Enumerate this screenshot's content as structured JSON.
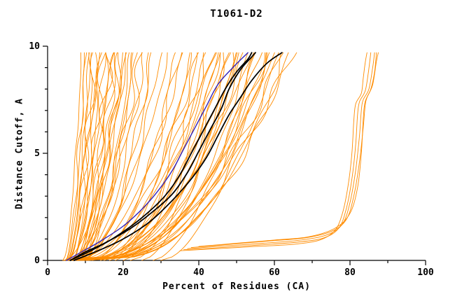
{
  "chart_data": {
    "type": "line",
    "title": "T1061-D2",
    "xlabel": "Percent of Residues (CA)",
    "ylabel": "Distance Cutoff, A",
    "xlim": [
      0,
      100
    ],
    "ylim": [
      0,
      10
    ],
    "xticks": [
      0,
      20,
      40,
      60,
      80,
      100
    ],
    "xminor_step": 10,
    "yticks": [
      0,
      5,
      10
    ],
    "yminor_step": 1,
    "y_top_data": 9.7,
    "legend": "none",
    "grid": false,
    "colors": {
      "models": "#ff8c00",
      "reference": "#000000",
      "highlight": "#3322bb"
    },
    "orange_fan_format": [
      "x_at_bottom",
      "x_at_top",
      "shape_exponent"
    ],
    "orange_fan": [
      [
        4.0,
        9,
        0.55
      ],
      [
        4.5,
        10,
        0.45
      ],
      [
        5.0,
        11,
        0.5
      ],
      [
        5.0,
        12,
        0.4
      ],
      [
        5.5,
        13,
        0.55
      ],
      [
        6.0,
        14,
        0.45
      ],
      [
        6.0,
        15,
        0.5
      ],
      [
        6.5,
        16,
        0.4
      ],
      [
        7.0,
        17,
        0.55
      ],
      [
        7.0,
        18,
        0.45
      ],
      [
        5.0,
        19,
        0.35
      ],
      [
        6.0,
        20,
        0.5
      ],
      [
        4.5,
        21,
        0.55
      ],
      [
        5.5,
        22,
        0.4
      ],
      [
        6.5,
        23,
        0.45
      ],
      [
        7.5,
        24,
        0.5
      ],
      [
        5.0,
        25,
        0.35
      ],
      [
        6.0,
        26,
        0.55
      ],
      [
        7.0,
        27,
        0.4
      ],
      [
        8.0,
        28,
        0.45
      ],
      [
        5,
        10,
        0.65
      ],
      [
        5.5,
        11.5,
        0.6
      ],
      [
        6,
        12.5,
        0.65
      ],
      [
        6.5,
        13.5,
        0.55
      ],
      [
        7,
        15,
        0.65
      ],
      [
        7.5,
        16.5,
        0.6
      ],
      [
        8,
        18,
        0.65
      ],
      [
        8.5,
        19.5,
        0.6
      ],
      [
        9,
        21,
        0.65
      ],
      [
        9.5,
        23,
        0.6
      ],
      [
        4,
        30,
        0.4
      ],
      [
        5,
        32,
        0.45
      ],
      [
        6,
        34,
        0.35
      ],
      [
        7,
        36,
        0.5
      ],
      [
        8,
        38,
        0.4
      ],
      [
        5,
        40,
        0.45
      ],
      [
        6,
        42,
        0.35
      ],
      [
        7,
        44,
        0.5
      ],
      [
        8,
        46,
        0.4
      ],
      [
        9,
        48,
        0.45
      ],
      [
        5,
        50,
        0.35
      ],
      [
        6,
        52,
        0.4
      ],
      [
        7,
        54,
        0.45
      ],
      [
        8,
        56,
        0.35
      ],
      [
        9,
        58,
        0.4
      ],
      [
        10,
        60,
        0.45
      ],
      [
        6,
        62,
        0.4
      ],
      [
        7,
        64,
        0.35
      ],
      [
        8,
        65,
        0.45
      ],
      [
        6,
        45,
        0.3
      ],
      [
        7,
        47,
        0.32
      ],
      [
        8,
        49,
        0.3
      ],
      [
        6.5,
        51,
        0.34
      ],
      [
        7.5,
        53,
        0.31
      ],
      [
        8.5,
        55,
        0.34
      ],
      [
        9,
        57,
        0.32
      ],
      [
        9.5,
        59,
        0.36
      ],
      [
        10,
        61,
        0.34
      ],
      [
        10.5,
        63,
        0.37
      ],
      [
        12,
        35,
        0.55
      ],
      [
        14,
        38,
        0.5
      ],
      [
        16,
        44,
        0.55
      ],
      [
        18,
        42,
        0.6
      ],
      [
        20,
        45,
        0.6
      ],
      [
        22,
        48,
        0.55
      ],
      [
        25,
        50,
        0.6
      ],
      [
        28,
        55,
        0.6
      ],
      [
        30,
        58,
        0.55
      ],
      [
        15,
        40,
        0.5
      ]
    ],
    "orange_right_cluster": [
      [
        [
          35,
          0.45
        ],
        [
          45,
          0.55
        ],
        [
          55,
          0.65
        ],
        [
          65,
          0.75
        ],
        [
          72,
          0.95
        ],
        [
          76,
          1.4
        ],
        [
          78,
          2.2
        ],
        [
          79.5,
          3.5
        ],
        [
          80.5,
          5.0
        ],
        [
          81,
          6.5
        ],
        [
          81.5,
          7.3
        ],
        [
          83,
          7.8
        ],
        [
          83.5,
          8.5
        ],
        [
          84,
          9.2
        ],
        [
          84.5,
          9.7
        ]
      ],
      [
        [
          36,
          0.5
        ],
        [
          46,
          0.6
        ],
        [
          56,
          0.72
        ],
        [
          66,
          0.85
        ],
        [
          73,
          1.05
        ],
        [
          77,
          1.5
        ],
        [
          79,
          2.4
        ],
        [
          80.5,
          3.8
        ],
        [
          81.5,
          5.4
        ],
        [
          82,
          6.8
        ],
        [
          82.5,
          7.4
        ],
        [
          84,
          7.9
        ],
        [
          84.8,
          8.7
        ],
        [
          85.5,
          9.7
        ]
      ],
      [
        [
          37,
          0.55
        ],
        [
          47,
          0.68
        ],
        [
          57,
          0.8
        ],
        [
          67,
          0.95
        ],
        [
          74,
          1.2
        ],
        [
          78,
          1.7
        ],
        [
          80,
          2.7
        ],
        [
          81.5,
          4.2
        ],
        [
          82.5,
          5.8
        ],
        [
          83,
          7.0
        ],
        [
          83.5,
          7.5
        ],
        [
          85,
          8.0
        ],
        [
          86,
          9.0
        ],
        [
          86.5,
          9.7
        ]
      ],
      [
        [
          38,
          0.6
        ],
        [
          48,
          0.75
        ],
        [
          58,
          0.9
        ],
        [
          68,
          1.05
        ],
        [
          75,
          1.35
        ],
        [
          79,
          1.9
        ],
        [
          81,
          3.0
        ],
        [
          82.5,
          4.6
        ],
        [
          83.5,
          6.2
        ],
        [
          84,
          7.2
        ],
        [
          84.5,
          7.6
        ],
        [
          86,
          8.2
        ],
        [
          87,
          9.3
        ],
        [
          87.5,
          9.7
        ]
      ],
      [
        [
          40,
          0.65
        ],
        [
          50,
          0.8
        ],
        [
          60,
          0.95
        ],
        [
          69,
          1.1
        ],
        [
          76,
          1.5
        ],
        [
          80,
          2.2
        ],
        [
          82,
          3.4
        ],
        [
          83,
          5.0
        ],
        [
          83.5,
          6.6
        ],
        [
          84,
          7.4
        ],
        [
          85.5,
          8.0
        ],
        [
          86.5,
          8.8
        ],
        [
          87,
          9.7
        ]
      ]
    ],
    "black_curves": [
      [
        [
          6,
          0
        ],
        [
          10,
          0.4
        ],
        [
          15,
          0.8
        ],
        [
          22,
          1.5
        ],
        [
          28,
          2.3
        ],
        [
          33,
          3.1
        ],
        [
          37,
          4.1
        ],
        [
          40,
          5.1
        ],
        [
          43,
          6.1
        ],
        [
          46,
          7.1
        ],
        [
          48,
          8.0
        ],
        [
          51,
          8.9
        ],
        [
          54,
          9.5
        ],
        [
          55,
          9.7
        ]
      ],
      [
        [
          7,
          0
        ],
        [
          14,
          0.5
        ],
        [
          20,
          1.0
        ],
        [
          27,
          1.8
        ],
        [
          33,
          2.8
        ],
        [
          38,
          3.8
        ],
        [
          42,
          4.8
        ],
        [
          45,
          5.8
        ],
        [
          48,
          6.8
        ],
        [
          51,
          7.6
        ],
        [
          54,
          8.4
        ],
        [
          58,
          9.2
        ],
        [
          62,
          9.7
        ]
      ],
      [
        [
          6,
          0
        ],
        [
          12,
          0.5
        ],
        [
          18,
          1.1
        ],
        [
          25,
          2.0
        ],
        [
          31,
          3.0
        ],
        [
          35,
          4.0
        ],
        [
          38,
          5.0
        ],
        [
          41,
          6.0
        ],
        [
          44,
          7.0
        ],
        [
          47,
          8.0
        ],
        [
          50,
          8.8
        ],
        [
          53,
          9.4
        ],
        [
          54,
          9.7
        ]
      ]
    ],
    "blue_curves": [
      [
        [
          5,
          0
        ],
        [
          9,
          0.4
        ],
        [
          14,
          0.9
        ],
        [
          20,
          1.6
        ],
        [
          25,
          2.4
        ],
        [
          29,
          3.2
        ],
        [
          33,
          4.2
        ],
        [
          36,
          5.2
        ],
        [
          39,
          6.2
        ],
        [
          42,
          7.2
        ],
        [
          45,
          8.2
        ],
        [
          49,
          9.0
        ],
        [
          53,
          9.7
        ]
      ]
    ]
  }
}
